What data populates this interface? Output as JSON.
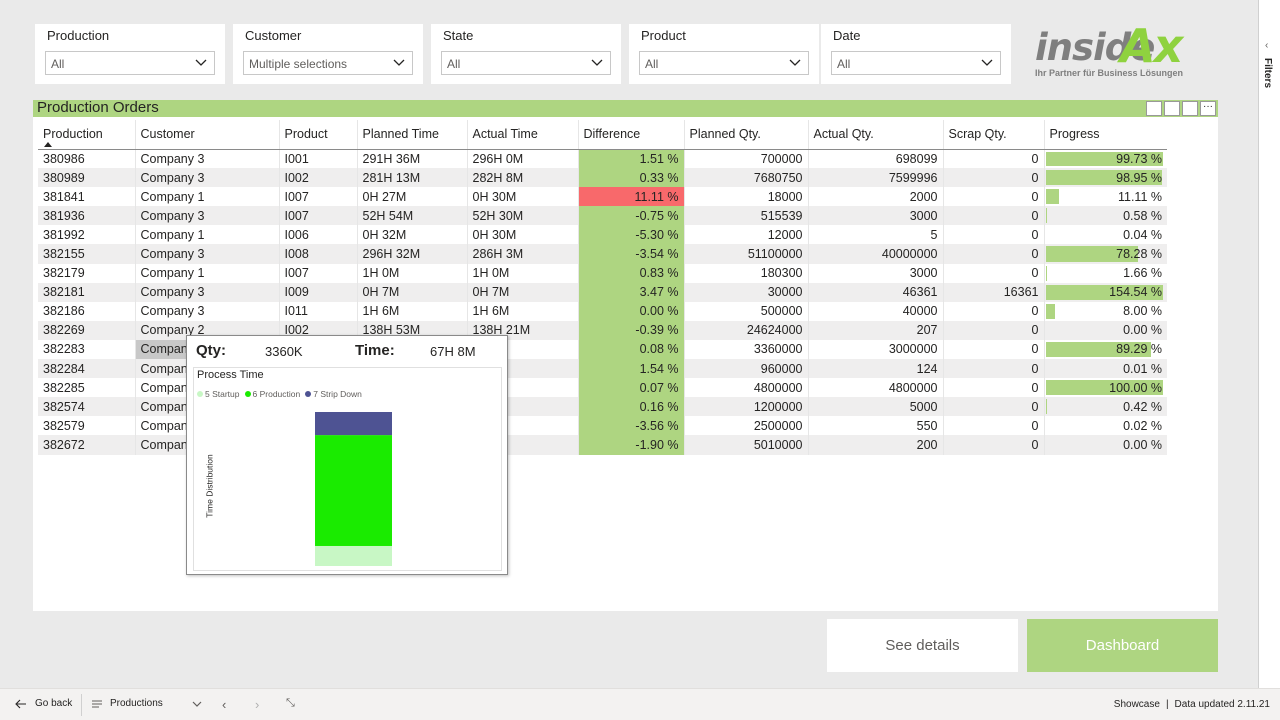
{
  "slicers": [
    {
      "title": "Production",
      "value": "All"
    },
    {
      "title": "Customer",
      "value": "Multiple selections"
    },
    {
      "title": "State",
      "value": "All"
    },
    {
      "title": "Product",
      "value": "All"
    },
    {
      "title": "Date",
      "value": "All"
    }
  ],
  "logo": {
    "brand_inside": "inside",
    "brand_ax": "Ax",
    "tagline": "Ihr Partner für Business Lösungen"
  },
  "visual": {
    "title": "Production Orders"
  },
  "table": {
    "columns": [
      "Production",
      "Customer",
      "Product",
      "Planned Time",
      "Actual Time",
      "Difference",
      "Planned Qty.",
      "Actual Qty.",
      "Scrap Qty.",
      "Progress"
    ],
    "rows": [
      {
        "production": "380986",
        "customer": "Company 3",
        "product": "I001",
        "planned_time": "291H 36M",
        "actual_time": "296H 0M",
        "difference": "1.51 %",
        "planned_qty": "700000",
        "actual_qty": "698099",
        "scrap_qty": "0",
        "progress": "99.73 %",
        "progress_value": 99.73
      },
      {
        "production": "380989",
        "customer": "Company 3",
        "product": "I002",
        "planned_time": "281H 13M",
        "actual_time": "282H 8M",
        "difference": "0.33 %",
        "planned_qty": "7680750",
        "actual_qty": "7599996",
        "scrap_qty": "0",
        "progress": "98.95 %",
        "progress_value": 98.95
      },
      {
        "production": "381841",
        "customer": "Company 1",
        "product": "I007",
        "planned_time": "0H 27M",
        "actual_time": "0H 30M",
        "difference": "11.11 %",
        "planned_qty": "18000",
        "actual_qty": "2000",
        "scrap_qty": "0",
        "progress": "11.11 %",
        "progress_value": 11.11,
        "difference_flag": "high"
      },
      {
        "production": "381936",
        "customer": "Company 3",
        "product": "I007",
        "planned_time": "52H 54M",
        "actual_time": "52H 30M",
        "difference": "-0.75 %",
        "planned_qty": "515539",
        "actual_qty": "3000",
        "scrap_qty": "0",
        "progress": "0.58 %",
        "progress_value": 0.58
      },
      {
        "production": "381992",
        "customer": "Company 1",
        "product": "I006",
        "planned_time": "0H 32M",
        "actual_time": "0H 30M",
        "difference": "-5.30 %",
        "planned_qty": "12000",
        "actual_qty": "5",
        "scrap_qty": "0",
        "progress": "0.04 %",
        "progress_value": 0.04
      },
      {
        "production": "382155",
        "customer": "Company 3",
        "product": "I008",
        "planned_time": "296H 32M",
        "actual_time": "286H 3M",
        "difference": "-3.54 %",
        "planned_qty": "51100000",
        "actual_qty": "40000000",
        "scrap_qty": "0",
        "progress": "78.28 %",
        "progress_value": 78.28
      },
      {
        "production": "382179",
        "customer": "Company 1",
        "product": "I007",
        "planned_time": "1H 0M",
        "actual_time": "1H 0M",
        "difference": "0.83 %",
        "planned_qty": "180300",
        "actual_qty": "3000",
        "scrap_qty": "0",
        "progress": "1.66 %",
        "progress_value": 1.66
      },
      {
        "production": "382181",
        "customer": "Company 3",
        "product": "I009",
        "planned_time": "0H 7M",
        "actual_time": "0H 7M",
        "difference": "3.47 %",
        "planned_qty": "30000",
        "actual_qty": "46361",
        "scrap_qty": "16361",
        "progress": "154.54 %",
        "progress_value": 154.54
      },
      {
        "production": "382186",
        "customer": "Company 3",
        "product": "I011",
        "planned_time": "1H 6M",
        "actual_time": "1H 6M",
        "difference": "0.00 %",
        "planned_qty": "500000",
        "actual_qty": "40000",
        "scrap_qty": "0",
        "progress": "8.00 %",
        "progress_value": 8.0
      },
      {
        "production": "382269",
        "customer": "Company 2",
        "product": "I002",
        "planned_time": "138H 53M",
        "actual_time": "138H 21M",
        "difference": "-0.39 %",
        "planned_qty": "24624000",
        "actual_qty": "207",
        "scrap_qty": "0",
        "progress": "0.00 %",
        "progress_value": 0.0
      },
      {
        "production": "382283",
        "customer": "Compan",
        "product": "",
        "planned_time": "",
        "actual_time": "M",
        "difference": "0.08 %",
        "planned_qty": "3360000",
        "actual_qty": "3000000",
        "scrap_qty": "0",
        "progress": "89.29 %",
        "progress_value": 89.29,
        "highlighted": true
      },
      {
        "production": "382284",
        "customer": "Compan",
        "product": "",
        "planned_time": "",
        "actual_time": "M",
        "difference": "1.54 %",
        "planned_qty": "960000",
        "actual_qty": "124",
        "scrap_qty": "0",
        "progress": "0.01 %",
        "progress_value": 0.01
      },
      {
        "production": "382285",
        "customer": "Compan",
        "product": "",
        "planned_time": "",
        "actual_time": "M",
        "difference": "0.07 %",
        "planned_qty": "4800000",
        "actual_qty": "4800000",
        "scrap_qty": "0",
        "progress": "100.00 %",
        "progress_value": 100.0
      },
      {
        "production": "382574",
        "customer": "Compan",
        "product": "",
        "planned_time": "",
        "actual_time": "48M",
        "difference": "0.16 %",
        "planned_qty": "1200000",
        "actual_qty": "5000",
        "scrap_qty": "0",
        "progress": "0.42 %",
        "progress_value": 0.42
      },
      {
        "production": "382579",
        "customer": "Compan",
        "product": "",
        "planned_time": "",
        "actual_time": "M",
        "difference": "-3.56 %",
        "planned_qty": "2500000",
        "actual_qty": "550",
        "scrap_qty": "0",
        "progress": "0.02 %",
        "progress_value": 0.02
      },
      {
        "production": "382672",
        "customer": "Compan",
        "product": "",
        "planned_time": "",
        "actual_time": "M",
        "difference": "-1.90 %",
        "planned_qty": "5010000",
        "actual_qty": "200",
        "scrap_qty": "0",
        "progress": "0.00 %",
        "progress_value": 0.0
      }
    ]
  },
  "tooltip": {
    "qty_label": "Qty:",
    "qty_value": "3360K",
    "time_label": "Time:",
    "time_value": "67H 8M",
    "chart_title": "Process Time",
    "y_axis_label": "Time Distribution",
    "legend": [
      {
        "label": "5 Startup",
        "color": "#c8f7c5"
      },
      {
        "label": "6 Production",
        "color": "#1aeb00"
      },
      {
        "label": "7 Strip Down",
        "color": "#4e5393"
      }
    ]
  },
  "chart_data": {
    "type": "bar",
    "stacked": true,
    "title": "Process Time",
    "ylabel": "Time Distribution",
    "xlabel": "",
    "categories": [
      ""
    ],
    "series": [
      {
        "name": "5 Startup",
        "values": [
          0.13
        ],
        "color": "#c8f7c5"
      },
      {
        "name": "6 Production",
        "values": [
          0.72
        ],
        "color": "#1aeb00"
      },
      {
        "name": "7 Strip Down",
        "values": [
          0.15
        ],
        "color": "#4e5393"
      }
    ],
    "legend_position": "top-left"
  },
  "buttons": {
    "details": "See details",
    "dashboard": "Dashboard"
  },
  "filters_pane": {
    "label": "Filters"
  },
  "bottom_bar": {
    "back_label": "Go back",
    "page_label": "Productions",
    "workspace": "Showcase",
    "separator": "|",
    "updated": "Data updated 2.11.21"
  },
  "colors": {
    "accent": "#aed581",
    "negative": "#f8696b"
  }
}
